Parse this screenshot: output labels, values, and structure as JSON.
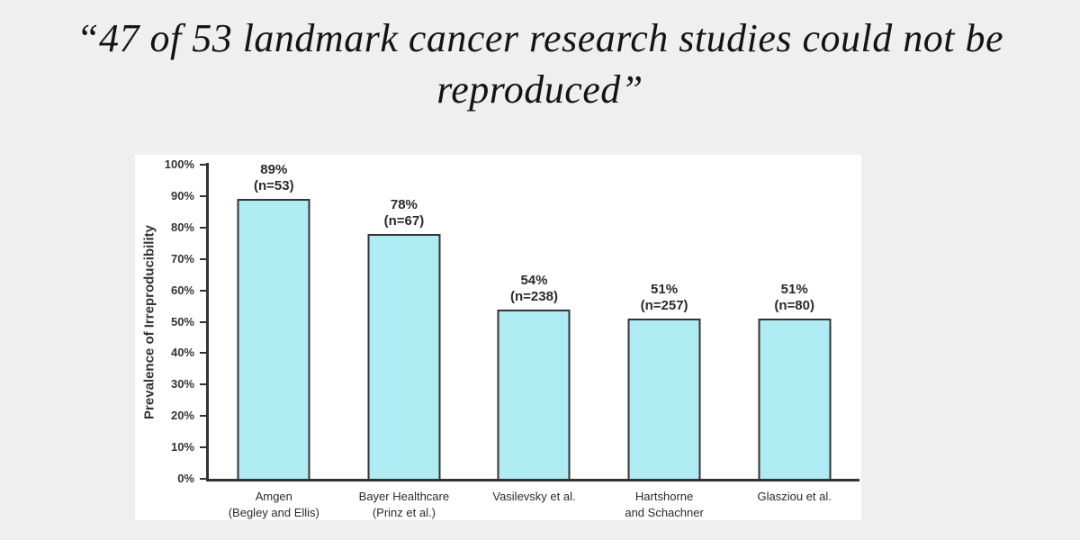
{
  "page": {
    "background_color": "#efefef",
    "title": "“47 of 53 landmark cancer research studies could not be reproduced”",
    "title_line1": "“47 of 53 landmark cancer research studies could not be",
    "title_line2": "reproduced”"
  },
  "chart_data": {
    "type": "bar",
    "title": "“47 of 53 landmark cancer research studies could not be reproduced”",
    "xlabel": "",
    "ylabel": "Prevalence of Irreproducibility",
    "ylim": [
      0,
      100
    ],
    "ytick_step": 10,
    "ytick_format": "{v}%",
    "grid": false,
    "legend": null,
    "panel_background": "#ffffff",
    "bar_fill_color": "#afebf2",
    "bar_border_color": "#333333",
    "axis_color": "#333333",
    "categories": [
      "Amgen (Begley and Ellis)",
      "Bayer Healthcare (Prinz et al.)",
      "Vasilevsky et al.",
      "Hartshorne and Schachner",
      "Glasziou et al."
    ],
    "category_lines": [
      [
        "Amgen",
        "(Begley and Ellis)"
      ],
      [
        "Bayer Healthcare",
        "(Prinz et al.)"
      ],
      [
        "Vasilevsky et al."
      ],
      [
        "Hartshorne",
        "and Schachner"
      ],
      [
        "Glasziou et al."
      ]
    ],
    "values": [
      89,
      78,
      54,
      51,
      51
    ],
    "sample_sizes": [
      53,
      67,
      238,
      257,
      80
    ],
    "bar_annotations": [
      [
        "89%",
        "(n=53)"
      ],
      [
        "78%",
        "(n=67)"
      ],
      [
        "54%",
        "(n=238)"
      ],
      [
        "51%",
        "(n=257)"
      ],
      [
        "51%",
        "(n=80)"
      ]
    ]
  }
}
